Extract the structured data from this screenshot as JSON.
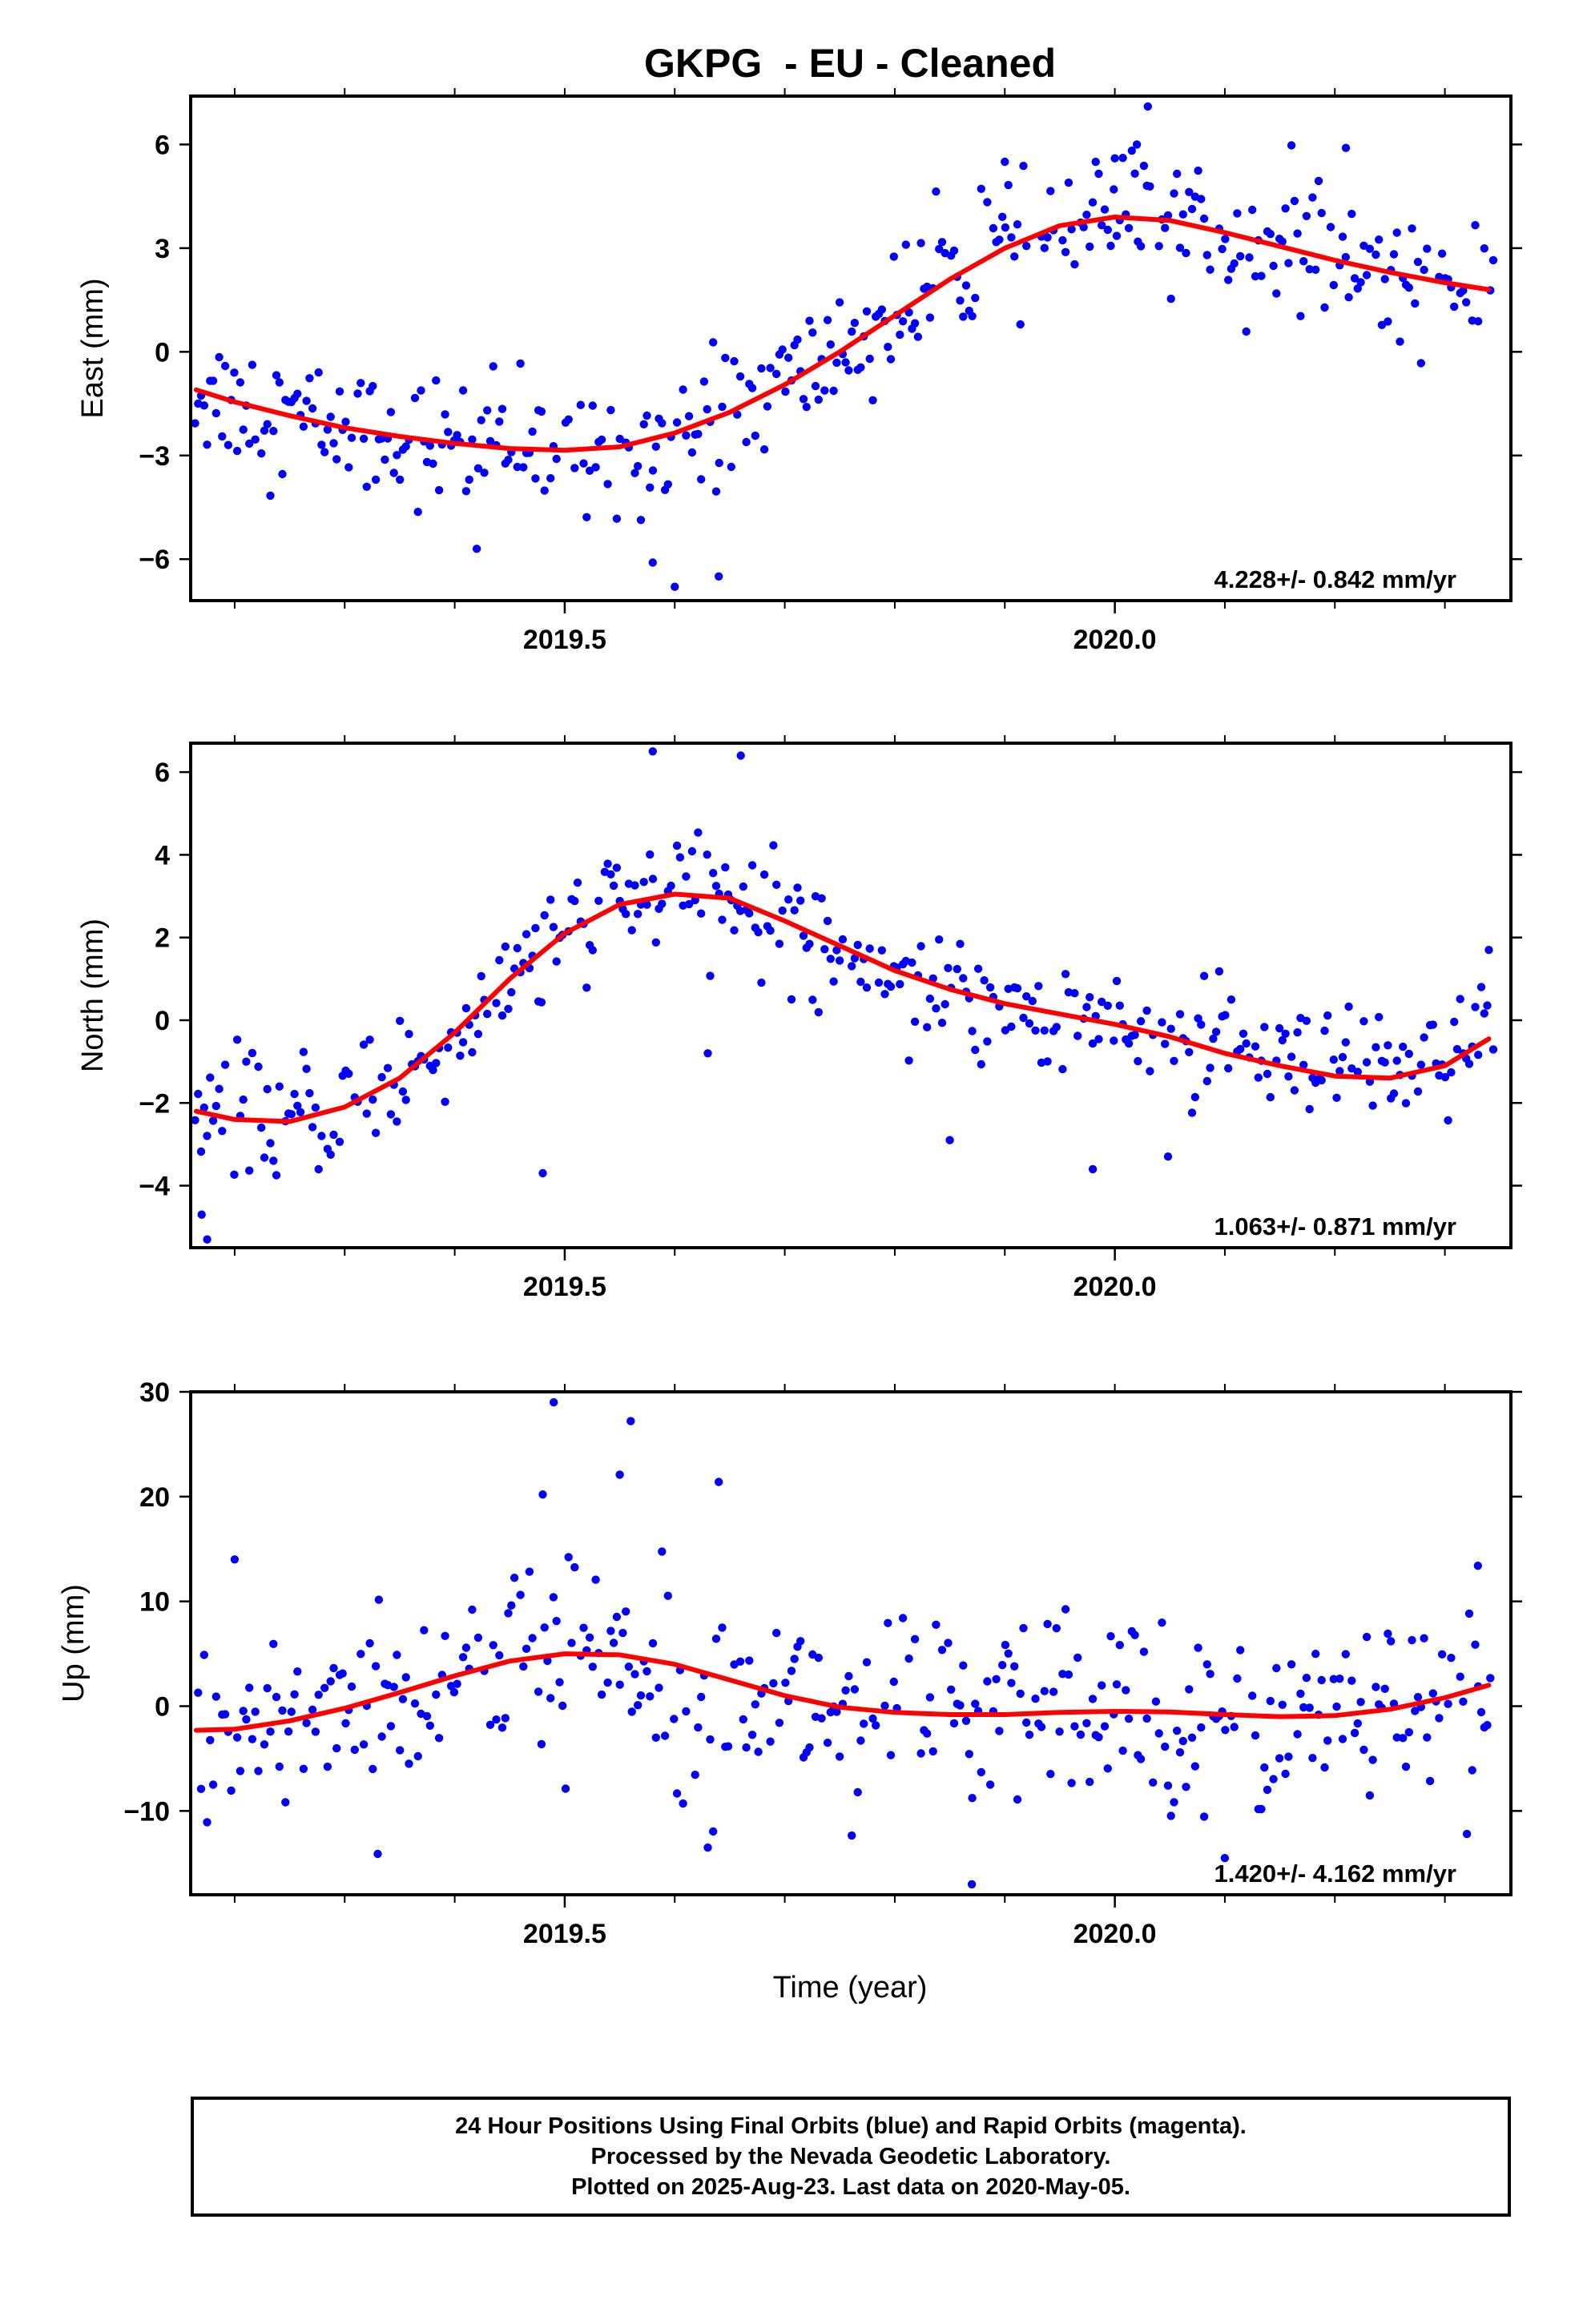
{
  "figure": {
    "title": "GKPG  - EU - Cleaned",
    "xlabel": "Time (year)",
    "footer": [
      "24 Hour Positions Using Final Orbits (blue) and Rapid Orbits (magenta).",
      "Processed by the Nevada Geodetic Laboratory.",
      "Plotted on 2025-Aug-23. Last data on 2020-May-05."
    ],
    "colors": {
      "points": "#0000ff",
      "fit": "#ff0000",
      "frame": "#000000"
    }
  },
  "chart_data": [
    {
      "type": "scatter",
      "ylabel": "East (mm)",
      "rate_text": "4.228+/- 0.842 mm/yr",
      "xlim": [
        2019.16,
        2020.36
      ],
      "ylim": [
        -7.2,
        7.4
      ],
      "xticks": [
        2019.5,
        2020.0
      ],
      "xtick_labels": [
        "2019.5",
        "2020.0"
      ],
      "yticks": [
        -6,
        -3,
        0,
        3,
        6
      ],
      "ytick_labels": [
        "−6",
        "−3",
        "0",
        "3",
        "6"
      ],
      "fit": {
        "x": [
          2019.165,
          2019.2,
          2019.25,
          2019.3,
          2019.35,
          2019.4,
          2019.45,
          2019.5,
          2019.55,
          2019.6,
          2019.65,
          2019.7,
          2019.75,
          2019.8,
          2019.85,
          2019.9,
          2019.95,
          2020.0,
          2020.05,
          2020.1,
          2020.15,
          2020.2,
          2020.25,
          2020.3,
          2020.34
        ],
        "y": [
          -1.1,
          -1.45,
          -1.85,
          -2.2,
          -2.45,
          -2.65,
          -2.8,
          -2.85,
          -2.75,
          -2.35,
          -1.75,
          -0.95,
          0.0,
          1.05,
          2.1,
          3.0,
          3.65,
          3.9,
          3.8,
          3.45,
          3.05,
          2.65,
          2.3,
          2.0,
          1.8
        ]
      },
      "noise": 1.1,
      "outliers": [
        [
          2019.58,
          -6.1
        ],
        [
          2019.6,
          -6.8
        ],
        [
          2019.64,
          -6.5
        ],
        [
          2020.0,
          5.6
        ],
        [
          2020.02,
          6.0
        ],
        [
          2020.03,
          7.1
        ],
        [
          2019.9,
          5.5
        ],
        [
          2020.21,
          5.9
        ],
        [
          2019.42,
          -5.7
        ]
      ]
    },
    {
      "type": "scatter",
      "ylabel": "North (mm)",
      "rate_text": "1.063+/- 0.871 mm/yr",
      "xlim": [
        2019.16,
        2020.36
      ],
      "ylim": [
        -5.5,
        6.7
      ],
      "xticks": [
        2019.5,
        2020.0
      ],
      "xtick_labels": [
        "2019.5",
        "2020.0"
      ],
      "yticks": [
        -4,
        -2,
        0,
        2,
        4,
        6
      ],
      "ytick_labels": [
        "−4",
        "−2",
        "0",
        "2",
        "4",
        "6"
      ],
      "fit": {
        "x": [
          2019.165,
          2019.2,
          2019.25,
          2019.3,
          2019.35,
          2019.4,
          2019.45,
          2019.5,
          2019.55,
          2019.6,
          2019.65,
          2019.7,
          2019.75,
          2019.8,
          2019.85,
          2019.9,
          2019.95,
          2020.0,
          2020.05,
          2020.1,
          2020.15,
          2020.2,
          2020.25,
          2020.3,
          2020.34
        ],
        "y": [
          -2.2,
          -2.4,
          -2.45,
          -2.1,
          -1.4,
          -0.3,
          1.0,
          2.1,
          2.8,
          3.05,
          2.95,
          2.4,
          1.8,
          1.2,
          0.75,
          0.4,
          0.15,
          -0.1,
          -0.4,
          -0.8,
          -1.1,
          -1.35,
          -1.4,
          -1.1,
          -0.45
        ]
      },
      "noise": 0.85,
      "outliers": [
        [
          2019.17,
          -4.7
        ],
        [
          2019.175,
          -5.3
        ],
        [
          2019.48,
          -3.7
        ],
        [
          2019.63,
          -0.8
        ],
        [
          2019.58,
          6.5
        ],
        [
          2019.66,
          6.4
        ],
        [
          2019.85,
          -2.9
        ],
        [
          2019.98,
          -3.6
        ],
        [
          2020.34,
          1.7
        ]
      ]
    },
    {
      "type": "scatter",
      "ylabel": "Up (mm)",
      "rate_text": "1.420+/- 4.162 mm/yr",
      "xlim": [
        2019.16,
        2020.36
      ],
      "ylim": [
        -18,
        30
      ],
      "xticks": [
        2019.5,
        2020.0
      ],
      "xtick_labels": [
        "2019.5",
        "2020.0"
      ],
      "yticks": [
        -10,
        0,
        10,
        20,
        30
      ],
      "ytick_labels": [
        "−10",
        "0",
        "10",
        "20",
        "30"
      ],
      "fit": {
        "x": [
          2019.165,
          2019.2,
          2019.25,
          2019.3,
          2019.35,
          2019.4,
          2019.45,
          2019.5,
          2019.55,
          2019.6,
          2019.65,
          2019.7,
          2019.75,
          2019.8,
          2019.85,
          2019.9,
          2019.95,
          2020.0,
          2020.05,
          2020.1,
          2020.15,
          2020.2,
          2020.25,
          2020.3,
          2020.34
        ],
        "y": [
          -2.3,
          -2.2,
          -1.4,
          -0.2,
          1.3,
          2.9,
          4.3,
          5.0,
          4.9,
          4.0,
          2.5,
          1.0,
          -0.1,
          -0.6,
          -0.8,
          -0.8,
          -0.6,
          -0.5,
          -0.55,
          -0.8,
          -1.0,
          -0.9,
          -0.3,
          0.8,
          2.0
        ]
      },
      "noise": 5.2,
      "outliers": [
        [
          2019.49,
          29.0
        ],
        [
          2019.56,
          27.2
        ],
        [
          2019.55,
          22.1
        ],
        [
          2019.64,
          21.4
        ],
        [
          2019.48,
          20.2
        ],
        [
          2019.2,
          14.0
        ],
        [
          2019.33,
          -14.1
        ],
        [
          2019.63,
          -13.5
        ],
        [
          2019.87,
          -17.0
        ],
        [
          2020.1,
          -14.5
        ],
        [
          2020.33,
          13.4
        ],
        [
          2020.32,
          -12.2
        ]
      ]
    }
  ]
}
